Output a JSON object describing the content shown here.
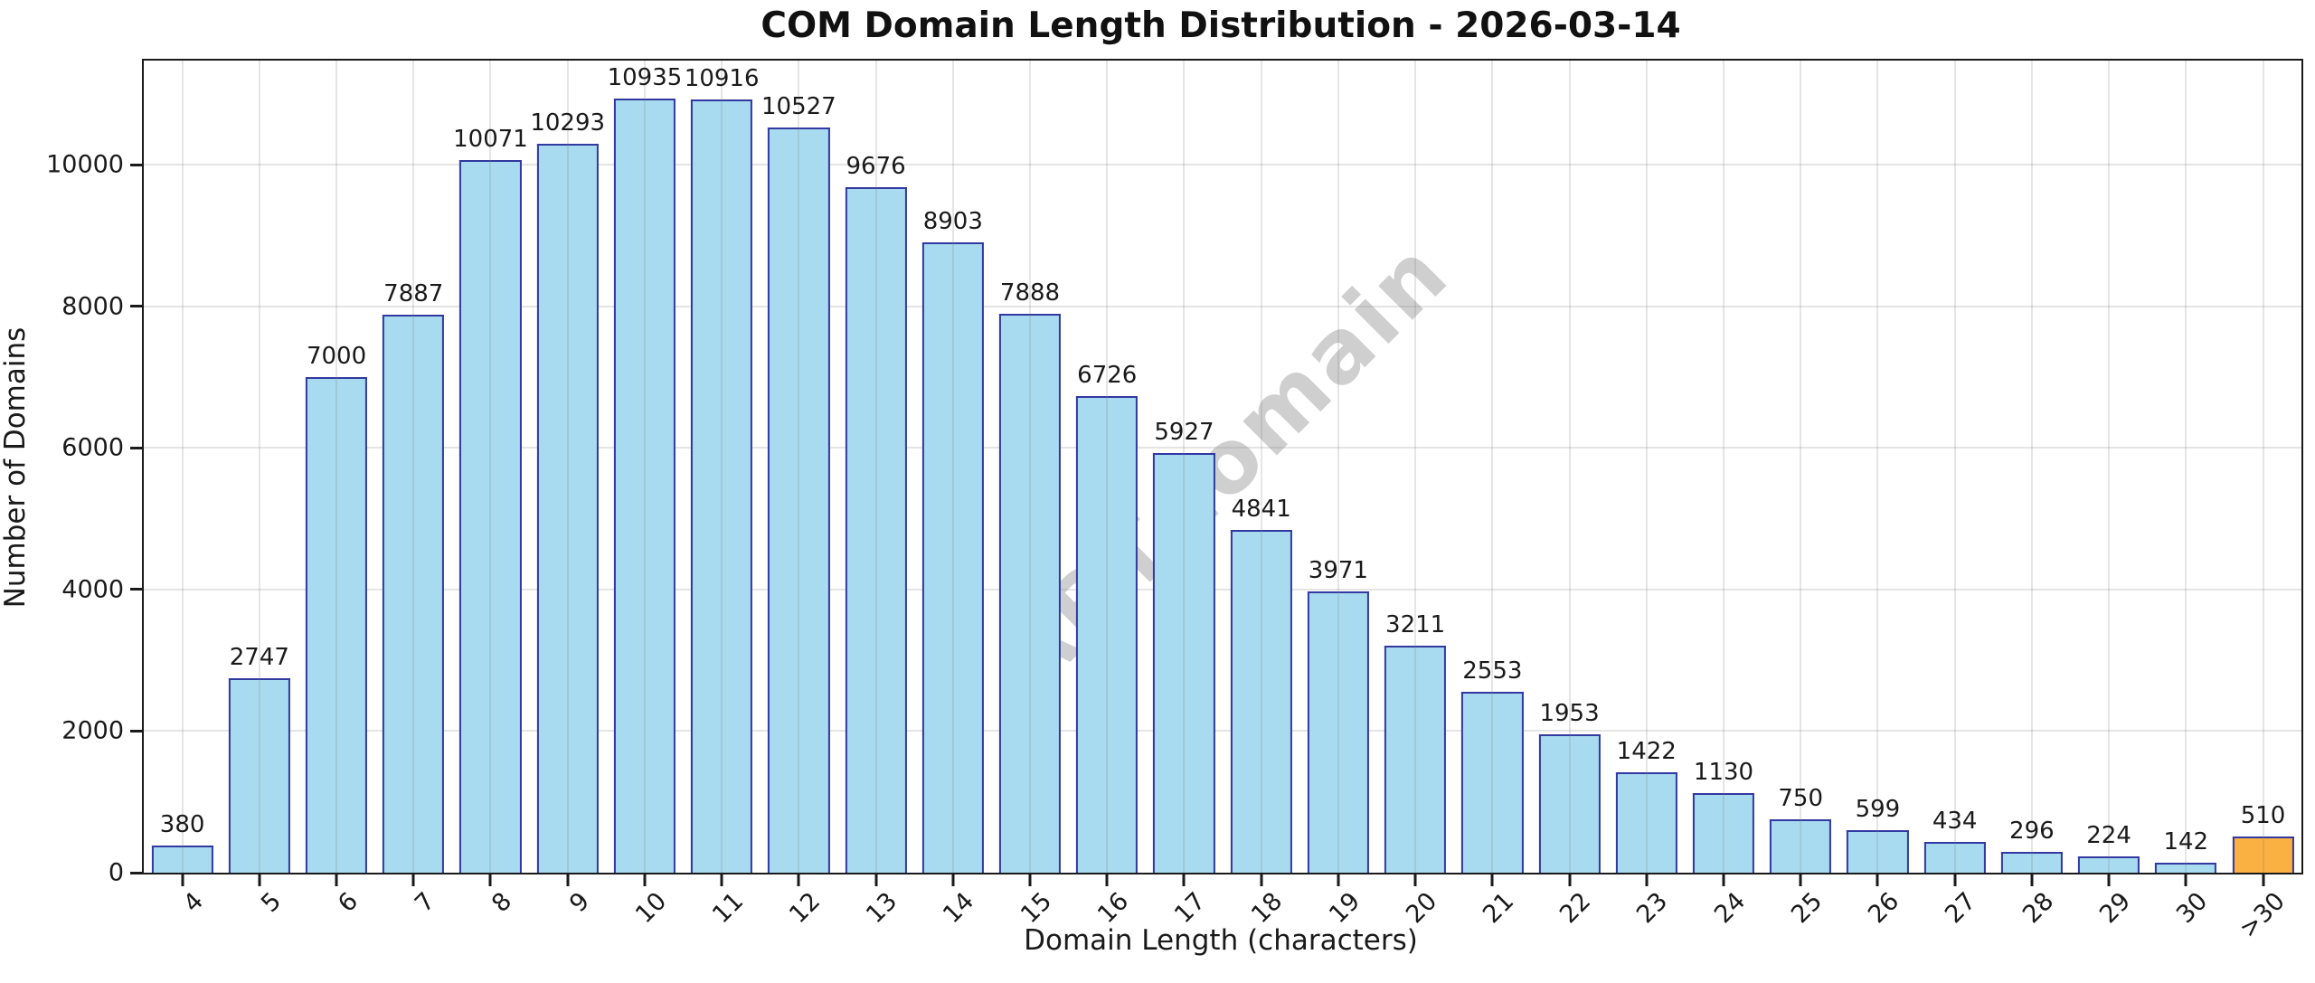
{
  "figure": {
    "title": "COM Domain Length Distribution - 2026-03-14",
    "watermark": "ABTdomain"
  },
  "chart_data": {
    "type": "bar",
    "title": "COM Domain Length Distribution - 2026-03-14",
    "xlabel": "Domain Length (characters)",
    "ylabel": "Number of Domains",
    "categories": [
      "4",
      "5",
      "6",
      "7",
      "8",
      "9",
      "10",
      "11",
      "12",
      "13",
      "14",
      "15",
      "16",
      "17",
      "18",
      "19",
      "20",
      "21",
      "22",
      "23",
      "24",
      "25",
      "26",
      "27",
      "28",
      "29",
      "30",
      ">30"
    ],
    "values": [
      380,
      2747,
      7000,
      7887,
      10071,
      10293,
      10935,
      10916,
      10527,
      9676,
      8903,
      7888,
      6726,
      5927,
      4841,
      3971,
      3211,
      2553,
      1953,
      1422,
      1130,
      750,
      599,
      434,
      296,
      224,
      142,
      510
    ],
    "value_labels_shown": true,
    "yticks": [
      0,
      2000,
      4000,
      6000,
      8000,
      10000
    ],
    "ylim": [
      0,
      11470
    ],
    "grid": true,
    "legend_position": "none",
    "watermark": "ABTdomain",
    "highlight_index": 27,
    "colors": {
      "bar_fill": "#a8dbef",
      "bar_edge": "#3239a0",
      "highlight_fill": "#fbb042",
      "axis": "#1a1a1a",
      "gridline": "#e4e4e4",
      "watermark": "#8c8c8c"
    }
  }
}
